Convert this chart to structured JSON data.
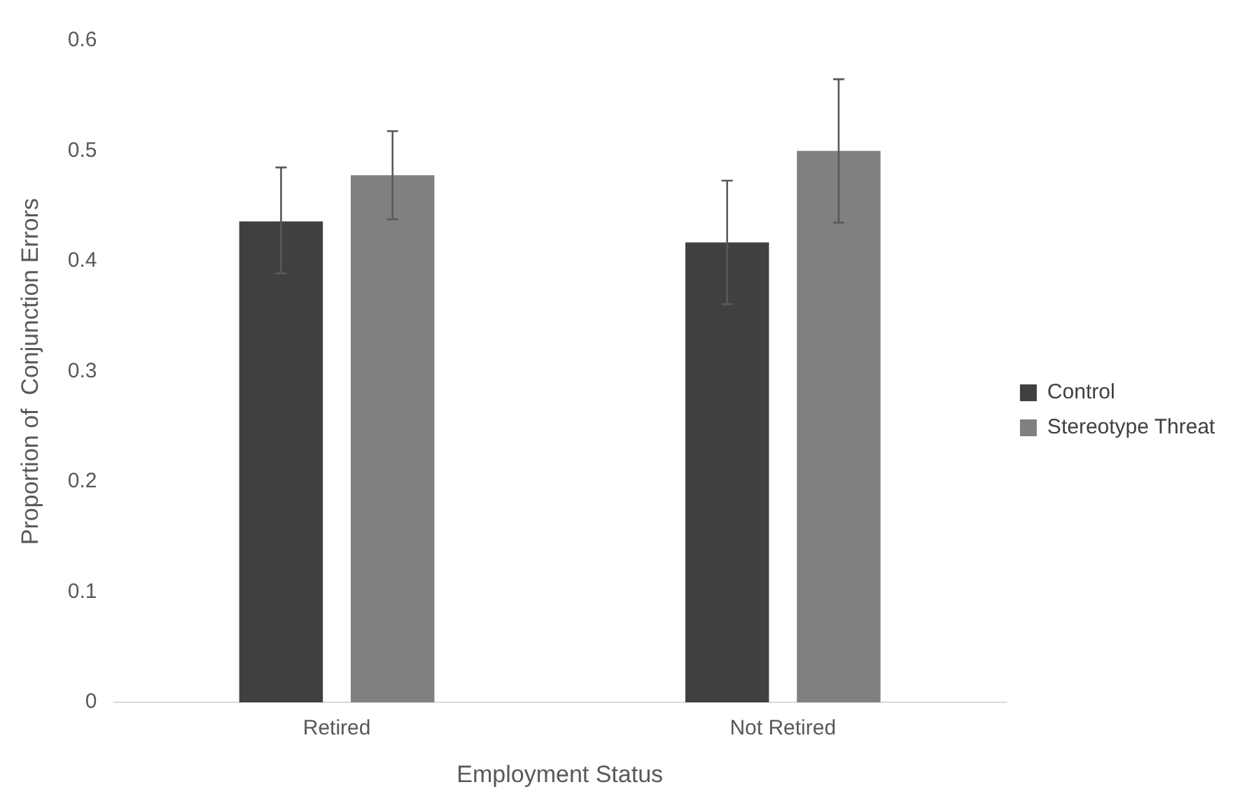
{
  "chart_data": {
    "type": "bar",
    "xlabel": "Employment Status",
    "ylabel": "Proportion of  Conjunction Errors",
    "categories": [
      "Retired",
      "Not Retired"
    ],
    "series": [
      {
        "name": "Control",
        "color": "#404040",
        "values": [
          0.436,
          0.417
        ],
        "errors": [
          [
            0.389,
            0.485
          ],
          [
            0.361,
            0.473
          ]
        ]
      },
      {
        "name": "Stereotype Threat",
        "color": "#808080",
        "values": [
          0.478,
          0.5
        ],
        "errors": [
          [
            0.438,
            0.518
          ],
          [
            0.435,
            0.565
          ]
        ]
      }
    ],
    "ylim": [
      0,
      0.6
    ],
    "yticks": [
      0,
      0.1,
      0.2,
      0.3,
      0.4,
      0.5,
      0.6
    ],
    "grid": false,
    "legend": "right"
  }
}
